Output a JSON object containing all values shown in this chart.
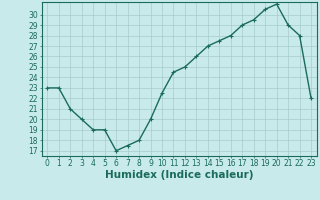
{
  "x": [
    0,
    1,
    2,
    3,
    4,
    5,
    6,
    7,
    8,
    9,
    10,
    11,
    12,
    13,
    14,
    15,
    16,
    17,
    18,
    19,
    20,
    21,
    22,
    23
  ],
  "y": [
    23,
    23,
    21,
    20,
    19,
    19,
    17,
    17.5,
    18,
    20,
    22.5,
    24.5,
    25,
    26,
    27,
    27.5,
    28,
    29,
    29.5,
    30.5,
    31,
    29,
    28,
    22
  ],
  "line_color": "#1a6b5a",
  "marker": "+",
  "marker_size": 3,
  "bg_color": "#c8eaea",
  "grid_color": "#a8cccc",
  "xlabel": "Humidex (Indice chaleur)",
  "xlabel_fontsize": 7.5,
  "ylim_min": 16.5,
  "ylim_max": 31.2,
  "yticks": [
    17,
    18,
    19,
    20,
    21,
    22,
    23,
    24,
    25,
    26,
    27,
    28,
    29,
    30
  ],
  "xticks": [
    0,
    1,
    2,
    3,
    4,
    5,
    6,
    7,
    8,
    9,
    10,
    11,
    12,
    13,
    14,
    15,
    16,
    17,
    18,
    19,
    20,
    21,
    22,
    23
  ],
  "tick_fontsize": 5.5,
  "axis_color": "#1a6b5a",
  "spine_color": "#1a6b5a",
  "linewidth": 1.0,
  "markeredgewidth": 0.8
}
